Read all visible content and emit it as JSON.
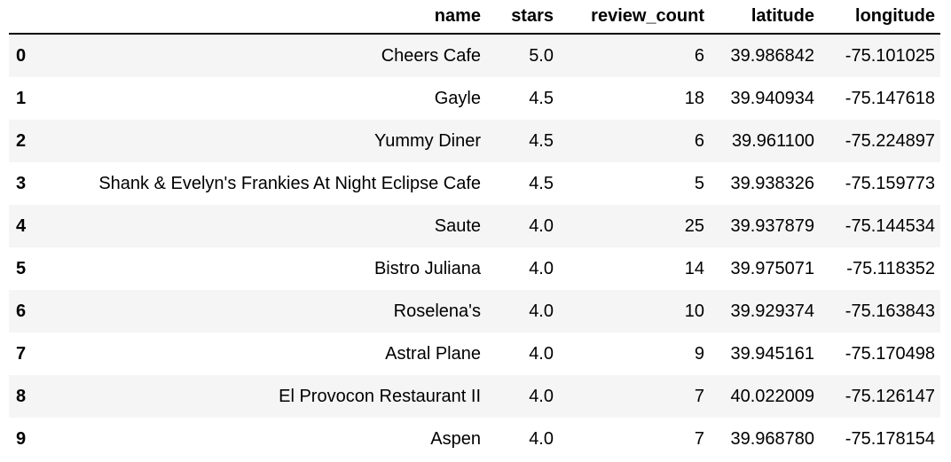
{
  "table": {
    "index_header": "",
    "columns": [
      "name",
      "stars",
      "review_count",
      "latitude",
      "longitude"
    ],
    "rows": [
      {
        "index": "0",
        "name": "Cheers Cafe",
        "stars": "5.0",
        "review_count": "6",
        "latitude": "39.986842",
        "longitude": "-75.101025"
      },
      {
        "index": "1",
        "name": "Gayle",
        "stars": "4.5",
        "review_count": "18",
        "latitude": "39.940934",
        "longitude": "-75.147618"
      },
      {
        "index": "2",
        "name": "Yummy Diner",
        "stars": "4.5",
        "review_count": "6",
        "latitude": "39.961100",
        "longitude": "-75.224897"
      },
      {
        "index": "3",
        "name": "Shank & Evelyn's Frankies At Night Eclipse Cafe",
        "stars": "4.5",
        "review_count": "5",
        "latitude": "39.938326",
        "longitude": "-75.159773"
      },
      {
        "index": "4",
        "name": "Saute",
        "stars": "4.0",
        "review_count": "25",
        "latitude": "39.937879",
        "longitude": "-75.144534"
      },
      {
        "index": "5",
        "name": "Bistro Juliana",
        "stars": "4.0",
        "review_count": "14",
        "latitude": "39.975071",
        "longitude": "-75.118352"
      },
      {
        "index": "6",
        "name": "Roselena's",
        "stars": "4.0",
        "review_count": "10",
        "latitude": "39.929374",
        "longitude": "-75.163843"
      },
      {
        "index": "7",
        "name": "Astral Plane",
        "stars": "4.0",
        "review_count": "9",
        "latitude": "39.945161",
        "longitude": "-75.170498"
      },
      {
        "index": "8",
        "name": "El Provocon Restaurant II",
        "stars": "4.0",
        "review_count": "7",
        "latitude": "40.022009",
        "longitude": "-75.126147"
      },
      {
        "index": "9",
        "name": "Aspen",
        "stars": "4.0",
        "review_count": "7",
        "latitude": "39.968780",
        "longitude": "-75.178154"
      }
    ]
  }
}
